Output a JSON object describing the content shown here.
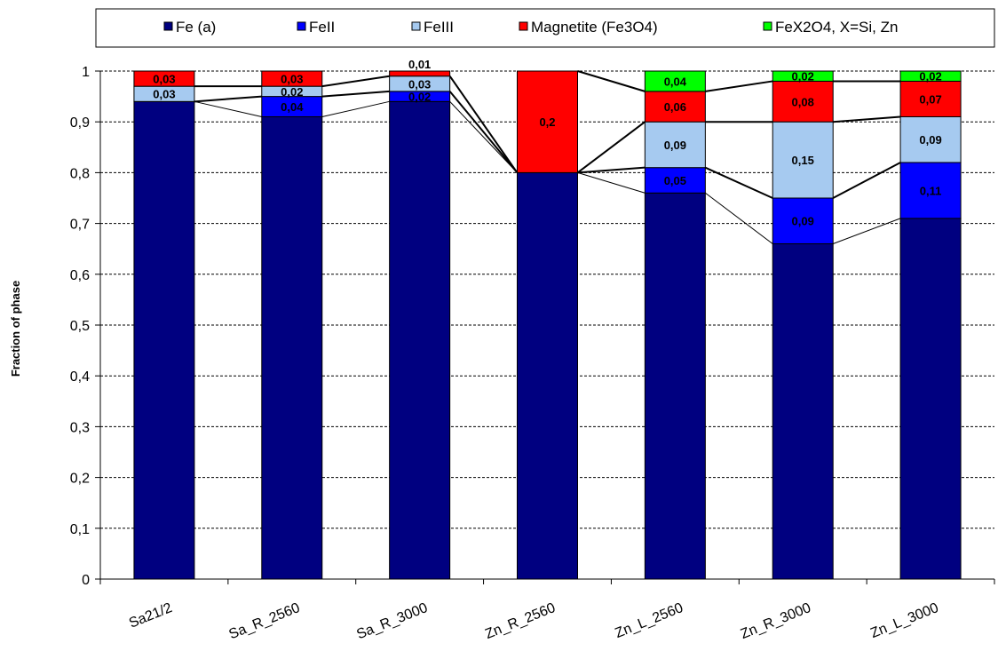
{
  "chart_data": {
    "type": "bar",
    "stacked": true,
    "ylabel": "Fraction of phase",
    "ylim": [
      0,
      1
    ],
    "y_ticks": [
      "0",
      "0,1",
      "0,2",
      "0,3",
      "0,4",
      "0,5",
      "0,6",
      "0,7",
      "0,8",
      "0,9",
      "1"
    ],
    "categories": [
      "Sa21/2",
      "Sa_R_2560",
      "Sa_R_3000",
      "Zn_R_2560",
      "Zn_L_2560",
      "Zn_R_3000",
      "Zn_L_3000"
    ],
    "legend_position": "top",
    "grid": "horizontal dashed",
    "series": [
      {
        "name": "Fe (a)",
        "color": "#000080",
        "values": [
          0.94,
          0.91,
          0.94,
          0.8,
          0.76,
          0.66,
          0.71
        ],
        "labels": [
          "",
          "",
          "",
          "",
          "",
          "",
          ""
        ]
      },
      {
        "name": "FeII",
        "color": "#0000FF",
        "values": [
          0,
          0.04,
          0.02,
          0,
          0.05,
          0.09,
          0.11
        ],
        "labels": [
          "",
          "0,04",
          "0,02",
          "",
          "0,05",
          "0,09",
          "0,11"
        ]
      },
      {
        "name": "FeIII",
        "color": "#A6CAF0",
        "values": [
          0.03,
          0.02,
          0.03,
          0,
          0.09,
          0.15,
          0.09
        ],
        "labels": [
          "0,03",
          "0,02",
          "0,03",
          "",
          "0,09",
          "0,15",
          "0,09"
        ]
      },
      {
        "name": "Magnetite (Fe3O4)",
        "color": "#FF0000",
        "values": [
          0.03,
          0.03,
          0.01,
          0.2,
          0.06,
          0.08,
          0.07
        ],
        "labels": [
          "0,03",
          "0,03",
          "0,01",
          "0,2",
          "0,06",
          "0,08",
          "0,07"
        ]
      },
      {
        "name": "FeX2O4, X=Si, Zn",
        "color": "#00FF00",
        "values": [
          0,
          0,
          0,
          0,
          0.04,
          0.02,
          0.02
        ],
        "labels": [
          "",
          "",
          "",
          "",
          "0,04",
          "0,02",
          "0,02"
        ]
      }
    ]
  }
}
